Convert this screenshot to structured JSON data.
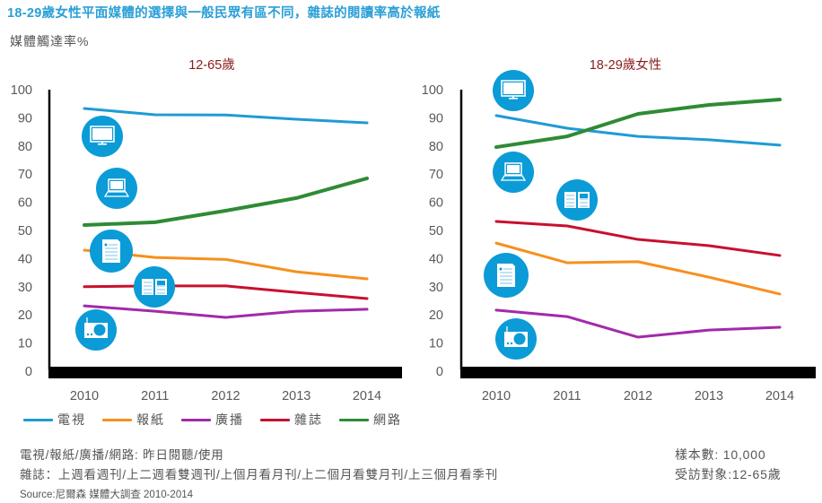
{
  "title": "18-29歲女性平面媒體的選擇與一般民眾有區不同，雜誌的閱讀率高於報紙",
  "y_unit_label": "媒體觸達率%",
  "colors": {
    "title": "#2a9fd6",
    "panel_title": "#8b1a1a",
    "icon_circle": "#0b9bd7"
  },
  "legend": [
    {
      "key": "tv",
      "label": "電視",
      "color": "#1f9bd4"
    },
    {
      "key": "newspaper",
      "label": "報紙",
      "color": "#f7901e"
    },
    {
      "key": "radio",
      "label": "廣播",
      "color": "#a22aaa"
    },
    {
      "key": "magazine",
      "label": "雜誌",
      "color": "#c8102e"
    },
    {
      "key": "internet",
      "label": "網路",
      "color": "#2e8b35"
    }
  ],
  "chart_data": [
    {
      "type": "line",
      "title": "12-65歲",
      "xlabel": "",
      "ylabel": "媒體觸達率%",
      "categories": [
        "2010",
        "2011",
        "2012",
        "2013",
        "2014"
      ],
      "yticks": [
        "0",
        "10",
        "20",
        "30",
        "40",
        "50",
        "60",
        "70",
        "80",
        "90",
        "100"
      ],
      "ylim": [
        0,
        100
      ],
      "grid": false,
      "series": [
        {
          "key": "tv",
          "name": "電視",
          "values": [
            93.3,
            91.1,
            91.0,
            89.5,
            88.2
          ]
        },
        {
          "key": "internet",
          "name": "網路",
          "values": [
            51.9,
            52.9,
            57.0,
            61.5,
            68.5
          ]
        },
        {
          "key": "newspaper",
          "name": "報紙",
          "values": [
            43.0,
            40.4,
            39.7,
            35.3,
            32.8
          ]
        },
        {
          "key": "magazine",
          "name": "雜誌",
          "values": [
            30.0,
            30.3,
            30.3,
            28.0,
            25.8
          ]
        },
        {
          "key": "radio",
          "name": "廣播",
          "values": [
            23.2,
            21.3,
            19.1,
            21.3,
            22.0
          ]
        }
      ],
      "icons": [
        {
          "name": "tv-icon"
        },
        {
          "name": "laptop-icon"
        },
        {
          "name": "newspaper-icon"
        },
        {
          "name": "magazine-icon"
        },
        {
          "name": "radio-icon"
        }
      ]
    },
    {
      "type": "line",
      "title": "18-29歲女性",
      "xlabel": "",
      "ylabel": "媒體觸達率%",
      "categories": [
        "2010",
        "2011",
        "2012",
        "2013",
        "2014"
      ],
      "yticks": [
        "0",
        "10",
        "20",
        "30",
        "40",
        "50",
        "60",
        "70",
        "80",
        "90",
        "100"
      ],
      "ylim": [
        0,
        100
      ],
      "grid": false,
      "series": [
        {
          "key": "tv",
          "name": "電視",
          "values": [
            90.8,
            86.3,
            83.4,
            82.2,
            80.3
          ]
        },
        {
          "key": "internet",
          "name": "網路",
          "values": [
            79.6,
            83.4,
            91.4,
            94.6,
            96.5
          ]
        },
        {
          "key": "magazine",
          "name": "雜誌",
          "values": [
            53.2,
            51.6,
            46.8,
            44.6,
            41.1
          ]
        },
        {
          "key": "newspaper",
          "name": "報紙",
          "values": [
            45.5,
            38.5,
            38.9,
            33.4,
            27.4
          ]
        },
        {
          "key": "radio",
          "name": "廣播",
          "values": [
            21.7,
            19.4,
            12.1,
            14.6,
            15.6
          ]
        }
      ],
      "icons": [
        {
          "name": "tv-icon"
        },
        {
          "name": "laptop-icon"
        },
        {
          "name": "magazine-icon"
        },
        {
          "name": "newspaper-icon"
        },
        {
          "name": "radio-icon"
        }
      ]
    }
  ],
  "notes": {
    "line1": "電視/報紙/廣播/網路: 昨日閱聽/使用",
    "line2": "雜誌：上週看週刊/上二週看雙週刊/上個月看月刊/上二個月看雙月刊/上三個月看季刊",
    "source": "Source:尼爾森 媒體大調查 2010-2014"
  },
  "meta": {
    "sample": "樣本數: 10,000",
    "target": "受訪對象:12-65歲"
  }
}
